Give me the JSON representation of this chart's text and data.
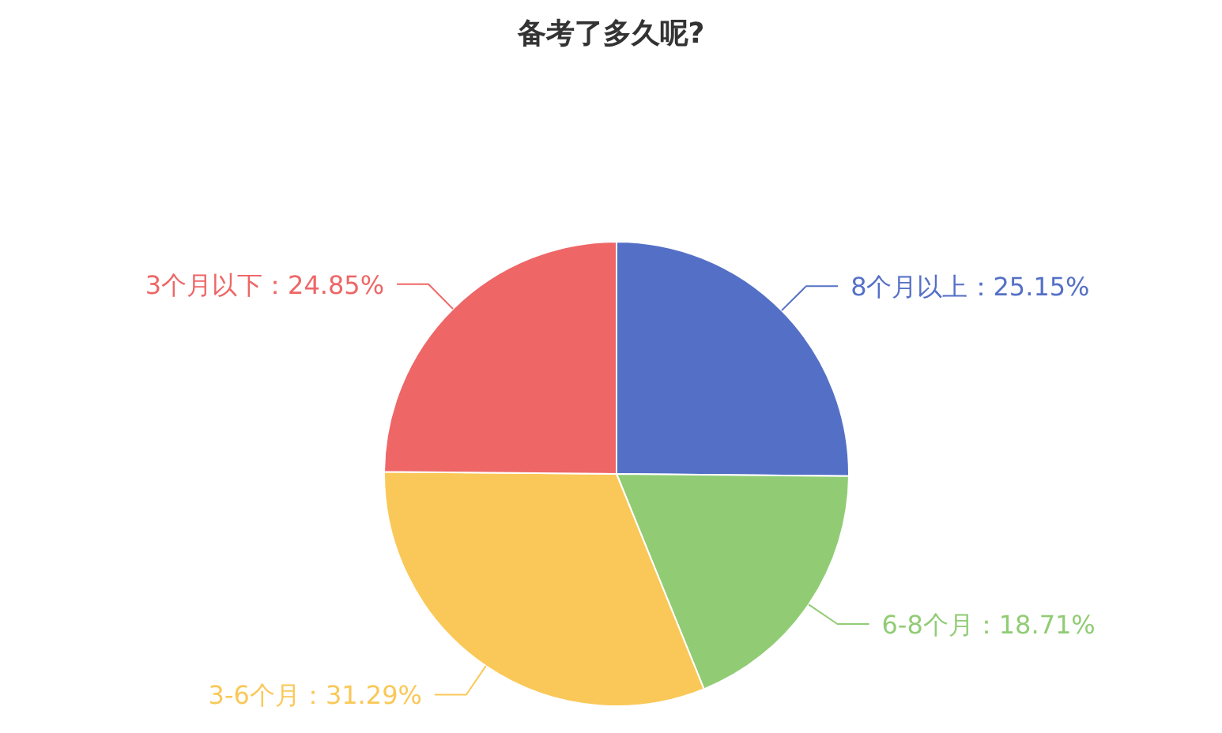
{
  "chart_data": {
    "type": "pie",
    "title": "备考了多久呢?",
    "categories": [
      "8个月以上",
      "6-8个月",
      "3-6个月",
      "3个月以下"
    ],
    "values": [
      25.15,
      18.71,
      31.29,
      24.85
    ],
    "value_labels": [
      "：25.15%",
      "：18.71%",
      "：31.29%",
      "：24.85%"
    ],
    "colors": [
      "#5470c6",
      "#91cc75",
      "#fac858",
      "#ee6666"
    ]
  }
}
